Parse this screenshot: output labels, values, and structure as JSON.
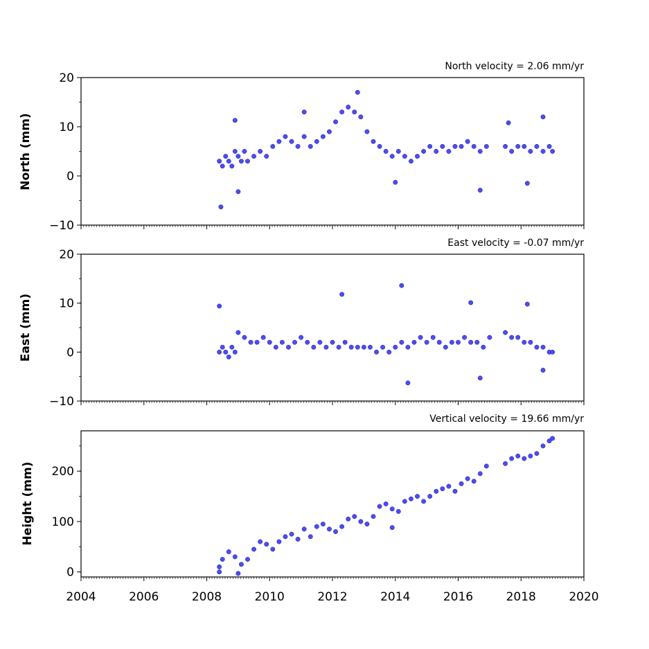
{
  "chart_data": [
    {
      "type": "scatter",
      "title": "North velocity = 2.06 mm/yr",
      "ylabel": "North (mm)",
      "xlim": [
        2004,
        2020
      ],
      "ylim": [
        -10,
        20
      ],
      "yticks": [
        20,
        10,
        0,
        -10
      ],
      "ytick_labels": [
        "20",
        "10",
        "0",
        "−10"
      ],
      "color": "#4b4bff",
      "series": [
        {
          "x": [
            2008.4,
            2008.5,
            2008.6,
            2008.7,
            2008.8,
            2008.9,
            2009.0,
            2009.1,
            2009.2,
            2009.3,
            2009.5,
            2009.7,
            2009.9,
            2010.1,
            2010.3,
            2010.5,
            2010.7,
            2010.9,
            2011.1,
            2011.3,
            2011.5,
            2011.7,
            2011.9,
            2012.1,
            2012.3,
            2012.5,
            2012.7,
            2012.9,
            2013.1,
            2013.3,
            2013.5,
            2013.7,
            2013.9,
            2014.1,
            2014.3,
            2014.5,
            2014.7,
            2014.9,
            2015.1,
            2015.3,
            2015.5,
            2015.7,
            2015.9,
            2016.1,
            2016.3,
            2016.5,
            2016.7,
            2016.9,
            2017.5,
            2017.7,
            2017.9,
            2018.1,
            2018.3,
            2018.5,
            2018.7,
            2018.9,
            2019.0,
            2008.45,
            2008.9,
            2009.0,
            2011.1,
            2012.8,
            2014.0,
            2016.7,
            2017.6,
            2018.2,
            2018.7
          ],
          "y": [
            3,
            2,
            4,
            3,
            2,
            5,
            4,
            3,
            5,
            3,
            4,
            5,
            4,
            6,
            7,
            8,
            7,
            6,
            8,
            6,
            7,
            8,
            9,
            11,
            13,
            14,
            13,
            12,
            9,
            7,
            6,
            5,
            4,
            5,
            4,
            3,
            4,
            5,
            6,
            5,
            6,
            5,
            6,
            6,
            7,
            6,
            5,
            6,
            6,
            5,
            6,
            6,
            5,
            6,
            5,
            6,
            5,
            -6.3,
            11.3,
            -3.2,
            13,
            17,
            -1.3,
            -2.9,
            10.8,
            -1.5,
            12
          ]
        }
      ]
    },
    {
      "type": "scatter",
      "title": "East velocity = -0.07 mm/yr",
      "ylabel": "East (mm)",
      "xlim": [
        2004,
        2020
      ],
      "ylim": [
        -10,
        20
      ],
      "yticks": [
        20,
        10,
        0,
        -10
      ],
      "ytick_labels": [
        "20",
        "10",
        "0",
        "−10"
      ],
      "color": "#4b4bff",
      "series": [
        {
          "x": [
            2008.4,
            2008.5,
            2008.6,
            2008.7,
            2008.8,
            2008.9,
            2009.0,
            2009.2,
            2009.4,
            2009.6,
            2009.8,
            2010.0,
            2010.2,
            2010.4,
            2010.6,
            2010.8,
            2011.0,
            2011.2,
            2011.4,
            2011.6,
            2011.8,
            2012.0,
            2012.2,
            2012.4,
            2012.6,
            2012.8,
            2013.0,
            2013.2,
            2013.4,
            2013.6,
            2013.8,
            2014.0,
            2014.2,
            2014.4,
            2014.6,
            2014.8,
            2015.0,
            2015.2,
            2015.4,
            2015.6,
            2015.8,
            2016.0,
            2016.2,
            2016.4,
            2016.6,
            2016.8,
            2017.0,
            2017.5,
            2017.7,
            2017.9,
            2018.1,
            2018.3,
            2018.5,
            2018.7,
            2018.9,
            2019.0,
            2008.4,
            2012.3,
            2014.2,
            2014.4,
            2016.4,
            2016.7,
            2018.2,
            2018.7
          ],
          "y": [
            0,
            1,
            0,
            -1,
            1,
            0,
            4,
            3,
            2,
            2,
            3,
            2,
            1,
            2,
            1,
            2,
            3,
            2,
            1,
            2,
            1,
            2,
            1,
            2,
            1,
            1,
            1,
            1,
            0,
            1,
            0,
            1,
            2,
            1,
            2,
            3,
            2,
            3,
            2,
            1,
            2,
            2,
            3,
            2,
            2,
            1,
            3,
            4,
            3,
            3,
            2,
            2,
            1,
            1,
            0,
            0,
            9.4,
            11.8,
            13.6,
            -6.3,
            10.1,
            -5.3,
            9.8,
            -3.7
          ]
        }
      ]
    },
    {
      "type": "scatter",
      "title": "Vertical velocity = 19.66 mm/yr",
      "ylabel": "Height (mm)",
      "xlim": [
        2004,
        2020
      ],
      "ylim": [
        -10,
        280
      ],
      "yticks": [
        200,
        100,
        0
      ],
      "ytick_labels": [
        "200",
        "100",
        "0"
      ],
      "color": "#4b4bff",
      "series": [
        {
          "x": [
            2008.4,
            2008.5,
            2008.7,
            2008.9,
            2009.1,
            2009.3,
            2009.5,
            2009.7,
            2009.9,
            2010.1,
            2010.3,
            2010.5,
            2010.7,
            2010.9,
            2011.1,
            2011.3,
            2011.5,
            2011.7,
            2011.9,
            2012.1,
            2012.3,
            2012.5,
            2012.7,
            2012.9,
            2013.1,
            2013.3,
            2013.5,
            2013.7,
            2013.9,
            2014.1,
            2014.3,
            2014.5,
            2014.7,
            2014.9,
            2015.1,
            2015.3,
            2015.5,
            2015.7,
            2015.9,
            2016.1,
            2016.3,
            2016.5,
            2016.7,
            2016.9,
            2017.5,
            2017.7,
            2017.9,
            2018.1,
            2018.3,
            2018.5,
            2018.7,
            2018.9,
            2019.0,
            2008.4,
            2009.0,
            2013.9
          ],
          "y": [
            10,
            25,
            40,
            30,
            15,
            25,
            45,
            60,
            55,
            45,
            60,
            70,
            75,
            65,
            85,
            70,
            90,
            95,
            85,
            80,
            90,
            105,
            110,
            100,
            95,
            110,
            130,
            135,
            125,
            120,
            140,
            145,
            150,
            140,
            150,
            160,
            165,
            170,
            160,
            175,
            185,
            180,
            195,
            210,
            215,
            225,
            230,
            225,
            230,
            235,
            250,
            260,
            265,
            0,
            -3,
            88
          ]
        }
      ]
    }
  ],
  "xaxis": {
    "tick_labels": [
      "2004",
      "2006",
      "2008",
      "2010",
      "2012",
      "2014",
      "2016",
      "2018",
      "2020"
    ]
  }
}
